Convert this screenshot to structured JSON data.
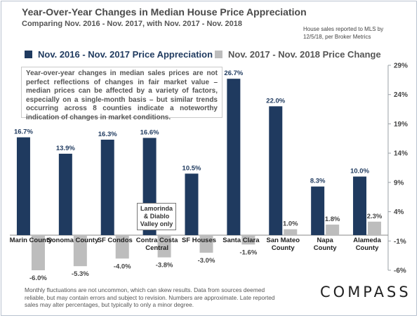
{
  "header": {
    "title": "Year-Over-Year Changes in Median House Price Appreciation",
    "subtitle": "Comparing Nov. 2016 - Nov. 2017, with Nov. 2017 - Nov. 2018",
    "source_line1": "House sales reported to MLS by",
    "source_line2": "12/5/18, per Broker Metrics"
  },
  "note": "Year-over-year changes in median sales prices are not perfect reflections of changes in fair market value – median prices can be affected by a variety of factors, especially on a single-month basis – but similar trends occurring across 8 counties indicate a noteworthy indication of changes in market conditions.",
  "callout": {
    "line1": "Lamorinda",
    "line2": "& Diablo",
    "line3": "Valley only"
  },
  "footer": {
    "line1": "Monthly fluctuations are not  uncommon, which can skew results. Data from sources deemed",
    "line2": "reliable, but may contain errors and subject to revision. Numbers are approximate. Late reported",
    "line3": "sales may alter percentages, but typically to only a minor degree."
  },
  "logo": "COMPASS",
  "colors": {
    "series1": "#1f3a5f",
    "series2": "#bdbdbd",
    "axis": "#9aa0a6"
  },
  "chart_data": {
    "type": "bar",
    "ylim": [
      -6,
      29
    ],
    "ytick_labels": [
      "29%",
      "24%",
      "19%",
      "14%",
      "9%",
      "4%",
      "-1%",
      "-6%"
    ],
    "categories": [
      [
        "Marin County"
      ],
      [
        "Sonoma County"
      ],
      [
        "SF Condos"
      ],
      [
        "Contra Costa",
        "Central"
      ],
      [
        "SF Houses"
      ],
      [
        "Santa Clara"
      ],
      [
        "San Mateo",
        "County"
      ],
      [
        "Napa",
        "County"
      ],
      [
        "Alameda",
        "County"
      ]
    ],
    "series": [
      {
        "name": "Nov. 2016 - Nov. 2017 Price Appreciation",
        "values": [
          16.7,
          13.9,
          16.3,
          16.6,
          10.5,
          26.7,
          22.0,
          8.3,
          10.0
        ],
        "labels": [
          "16.7%",
          "13.9%",
          "16.3%",
          "16.6%",
          "10.5%",
          "26.7%",
          "22.0%",
          "8.3%",
          "10.0%"
        ]
      },
      {
        "name": "Nov. 2017 - Nov. 2018 Price Change",
        "values": [
          -6.0,
          -5.3,
          -4.0,
          -3.8,
          -3.0,
          -1.6,
          1.0,
          1.8,
          2.3
        ],
        "labels": [
          "-6.0%",
          "-5.3%",
          "-4.0%",
          "-3.8%",
          "-3.0%",
          "-1.6%",
          "1.0%",
          "1.8%",
          "2.3%"
        ]
      }
    ]
  }
}
